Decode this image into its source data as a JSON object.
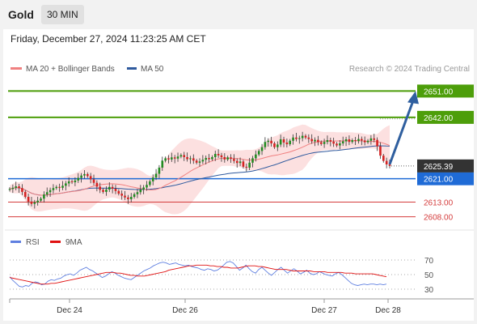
{
  "header": {
    "title": "Gold",
    "timeframe": "30 MIN"
  },
  "timestamp": "Friday, December 27, 2024 11:23:25 AM CET",
  "legend": {
    "ma20": "MA 20 + Bollinger Bands",
    "ma50": "MA 50"
  },
  "source": "Research © 2024 Trading Central",
  "colors": {
    "resistance": "#4d9e0a",
    "support": "#1f6bd6",
    "target": "#d43c3c",
    "arrow": "#2f5f9f",
    "ma20": "#f08080",
    "ma50": "#2f5a9e",
    "bull": "#228b22",
    "bear": "#d42222",
    "rsi": "#5f7fe0",
    "rsi_ma": "#e01010",
    "price_label": "#333333"
  },
  "chart_data": [
    {
      "type": "candlestick",
      "x_ticks": [
        "Dec 24",
        "Dec 26",
        "Dec 27",
        "Dec 28"
      ],
      "ylim": [
        2604,
        2655
      ],
      "levels": [
        {
          "label": "2651.00",
          "value": 2651.0,
          "role": "resistance"
        },
        {
          "label": "2642.00",
          "value": 2642.0,
          "role": "resistance"
        },
        {
          "label": "2621.00",
          "value": 2621.0,
          "role": "support"
        },
        {
          "label": "2613.00",
          "value": 2613.0,
          "role": "target"
        },
        {
          "label": "2608.00",
          "value": 2608.0,
          "role": "target"
        }
      ],
      "last_price": {
        "label": "2625.39",
        "value": 2625.39
      },
      "arrow": {
        "from": 2625.4,
        "to": 2651.0
      },
      "closes": [
        2617.5,
        2617.9,
        2618.4,
        2617.8,
        2616.5,
        2614.8,
        2613.2,
        2612.4,
        2612.9,
        2613.5,
        2614.2,
        2615.6,
        2616.4,
        2617.1,
        2617.8,
        2618.2,
        2617.9,
        2618.6,
        2619.4,
        2620.1,
        2619.8,
        2620.4,
        2621.3,
        2622.1,
        2622.6,
        2621.9,
        2620.8,
        2619.6,
        2618.3,
        2617.2,
        2616.5,
        2617.3,
        2618.2,
        2617.6,
        2616.8,
        2615.9,
        2615.2,
        2614.6,
        2614.0,
        2614.8,
        2615.7,
        2616.4,
        2617.3,
        2618.0,
        2618.9,
        2620.1,
        2621.4,
        2622.7,
        2624.8,
        2627.2,
        2628.0,
        2627.6,
        2628.3,
        2627.9,
        2628.6,
        2629.1,
        2628.4,
        2627.7,
        2628.0,
        2627.2,
        2626.5,
        2626.9,
        2627.5,
        2628.1,
        2627.7,
        2628.4,
        2629.5,
        2629.0,
        2628.4,
        2627.6,
        2628.3,
        2627.8,
        2627.1,
        2626.4,
        2626.9,
        2625.1,
        2624.8,
        2626.5,
        2628.0,
        2629.3,
        2630.5,
        2631.8,
        2633.6,
        2634.0,
        2633.1,
        2631.8,
        2632.7,
        2634.5,
        2633.4,
        2632.8,
        2634.0,
        2635.1,
        2634.6,
        2634.9,
        2635.7,
        2635.1,
        2634.6,
        2633.8,
        2634.3,
        2633.5,
        2632.9,
        2633.6,
        2634.2,
        2633.7,
        2633.0,
        2632.4,
        2633.1,
        2633.8,
        2634.5,
        2633.6,
        2634.2,
        2633.9,
        2634.6,
        2634.1,
        2633.5,
        2634.0,
        2634.8,
        2634.3,
        2632.1,
        2628.9,
        2627.1,
        2625.9,
        2625.39
      ],
      "rsi": {
        "levels": [
          70,
          50,
          30
        ],
        "values": [
          47,
          42,
          38,
          34,
          33,
          35,
          34,
          38,
          40,
          39,
          36,
          37,
          41,
          43,
          42,
          44,
          45,
          48,
          50,
          51,
          49,
          52,
          56,
          58,
          60,
          57,
          55,
          52,
          49,
          46,
          48,
          51,
          54,
          52,
          49,
          47,
          45,
          44,
          43,
          46,
          49,
          52,
          55,
          57,
          59,
          62,
          64,
          66,
          67,
          66,
          64,
          65,
          66,
          64,
          63,
          62,
          63,
          61,
          60,
          59,
          57,
          56,
          58,
          57,
          55,
          56,
          59,
          63,
          67,
          68,
          66,
          61,
          56,
          59,
          63,
          58,
          54,
          52,
          57,
          60,
          56,
          52,
          49,
          53,
          57,
          60,
          56,
          52,
          55,
          58,
          55,
          51,
          53,
          56,
          52,
          50,
          51,
          54,
          52,
          50,
          49,
          48,
          51,
          53,
          50,
          46,
          42,
          38,
          36,
          35,
          36,
          37,
          36,
          37,
          37,
          36,
          37,
          36,
          37
        ],
        "ma9": [
          46,
          45,
          44,
          43,
          42,
          41,
          40,
          39,
          38,
          37,
          37,
          37,
          38,
          38,
          39,
          40,
          41,
          42,
          43,
          44,
          45,
          46,
          47,
          48,
          49,
          50,
          51,
          52,
          53,
          53,
          53,
          52,
          52,
          51,
          50,
          49,
          49,
          48,
          48,
          48,
          49,
          50,
          51,
          52,
          53,
          54,
          56,
          57,
          58,
          59,
          60,
          61,
          62,
          62,
          63,
          63,
          63,
          63,
          62,
          62,
          61,
          61,
          60,
          60,
          59,
          59,
          59,
          60,
          61,
          62,
          62,
          62,
          61,
          61,
          60,
          59,
          58,
          57,
          57,
          57,
          57,
          56,
          55,
          55,
          55,
          55,
          55,
          55,
          54,
          54,
          54,
          54,
          53,
          53,
          53,
          53,
          53,
          52,
          52,
          52,
          51,
          51,
          51,
          51,
          51,
          51,
          50,
          49,
          48,
          47
        ]
      }
    }
  ]
}
